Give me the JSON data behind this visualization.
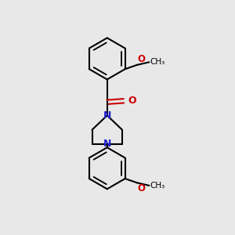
{
  "background_color": "#e8e8e8",
  "bond_color": "#000000",
  "nitrogen_color": "#2222cc",
  "oxygen_color": "#cc0000",
  "line_width": 1.5,
  "figsize": [
    3.0,
    3.0
  ],
  "dpi": 100,
  "xlim": [
    0,
    10
  ],
  "ylim": [
    0,
    10
  ]
}
